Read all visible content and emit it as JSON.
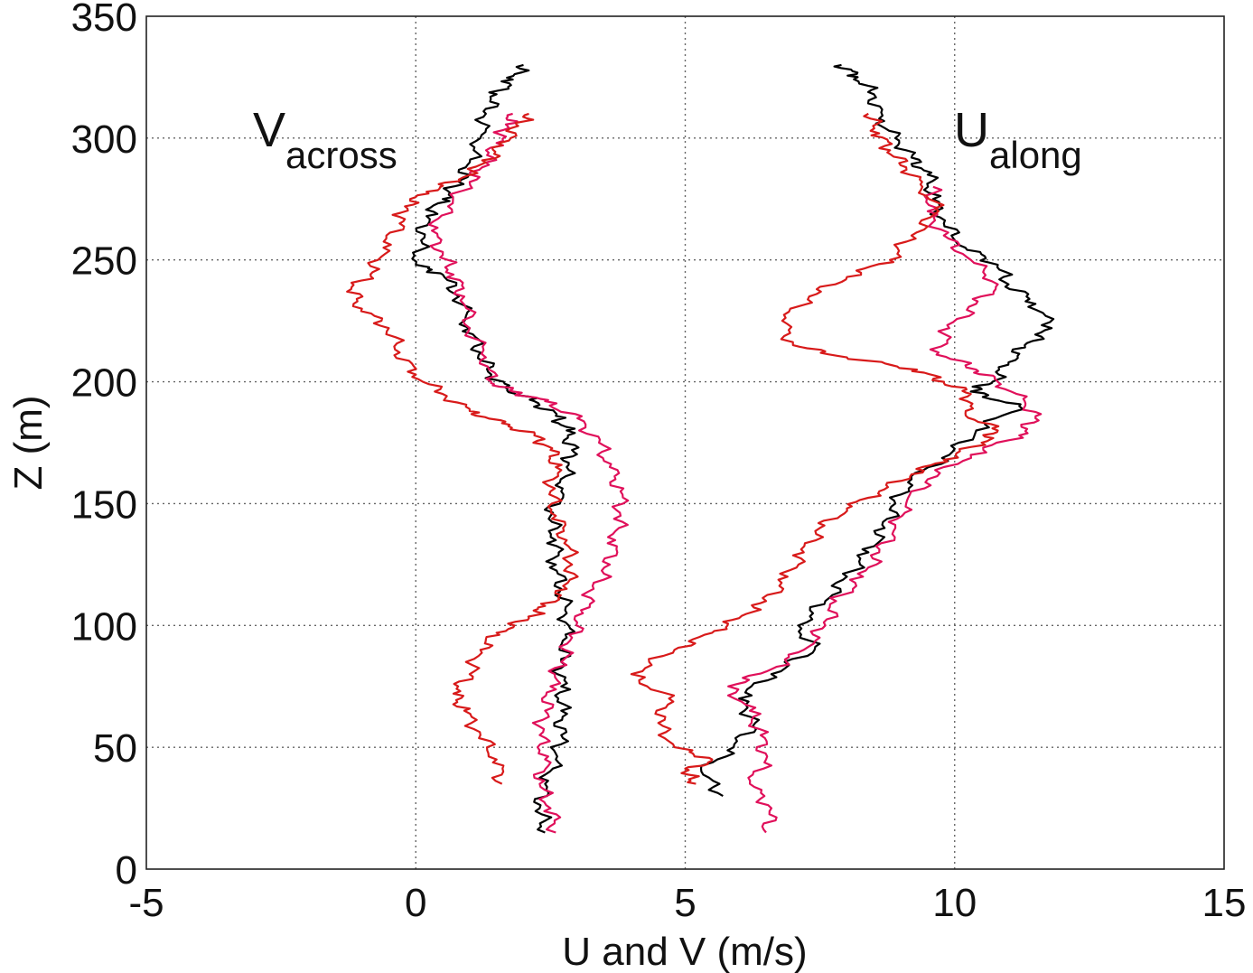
{
  "chart_data": {
    "type": "line",
    "title": "",
    "xlabel": "U and V (m/s)",
    "ylabel": "Z (m)",
    "xlim": [
      -5,
      15
    ],
    "ylim": [
      0,
      350
    ],
    "xticks": [
      -5,
      0,
      5,
      10,
      15
    ],
    "yticks": [
      0,
      50,
      100,
      150,
      200,
      250,
      300,
      350
    ],
    "xtick_labels": [
      "-5",
      "0",
      "5",
      "10",
      "15"
    ],
    "ytick_labels": [
      "0",
      "50",
      "100",
      "150",
      "200",
      "250",
      "300",
      "350"
    ],
    "grid": true,
    "legend": "none",
    "annotations": [
      {
        "id": "v-across",
        "main": "V",
        "sub": "across"
      },
      {
        "id": "u-along",
        "main": "U",
        "sub": "along"
      }
    ],
    "series": [
      {
        "group": "V",
        "color": "#000000",
        "points": [
          [
            2.4,
            15
          ],
          [
            2.3,
            25
          ],
          [
            2.4,
            35
          ],
          [
            2.6,
            45
          ],
          [
            2.7,
            55
          ],
          [
            2.7,
            65
          ],
          [
            2.7,
            75
          ],
          [
            2.7,
            85
          ],
          [
            2.8,
            95
          ],
          [
            2.8,
            105
          ],
          [
            2.7,
            115
          ],
          [
            2.6,
            125
          ],
          [
            2.6,
            135
          ],
          [
            2.5,
            145
          ],
          [
            2.7,
            155
          ],
          [
            2.8,
            165
          ],
          [
            2.9,
            172
          ],
          [
            2.8,
            180
          ],
          [
            2.6,
            186
          ],
          [
            2.2,
            192
          ],
          [
            1.7,
            197
          ],
          [
            1.4,
            203
          ],
          [
            1.2,
            212
          ],
          [
            1.0,
            222
          ],
          [
            0.8,
            235
          ],
          [
            0.5,
            244
          ],
          [
            0.0,
            248
          ],
          [
            0.1,
            258
          ],
          [
            0.2,
            268
          ],
          [
            0.5,
            275
          ],
          [
            0.8,
            282
          ],
          [
            1.0,
            290
          ],
          [
            1.2,
            300
          ],
          [
            1.3,
            310
          ],
          [
            1.5,
            318
          ],
          [
            1.8,
            324
          ],
          [
            2.0,
            330
          ]
        ]
      },
      {
        "group": "V",
        "color": "#e0105a",
        "points": [
          [
            2.6,
            15
          ],
          [
            2.5,
            25
          ],
          [
            2.3,
            35
          ],
          [
            2.4,
            45
          ],
          [
            2.3,
            55
          ],
          [
            2.4,
            65
          ],
          [
            2.5,
            75
          ],
          [
            2.7,
            85
          ],
          [
            2.9,
            95
          ],
          [
            3.1,
            105
          ],
          [
            3.3,
            115
          ],
          [
            3.6,
            125
          ],
          [
            3.7,
            135
          ],
          [
            3.8,
            145
          ],
          [
            3.8,
            155
          ],
          [
            3.6,
            165
          ],
          [
            3.4,
            175
          ],
          [
            3.0,
            185
          ],
          [
            2.4,
            192
          ],
          [
            1.8,
            196
          ],
          [
            1.4,
            200
          ],
          [
            1.3,
            210
          ],
          [
            1.0,
            222
          ],
          [
            0.9,
            235
          ],
          [
            0.7,
            244
          ],
          [
            0.5,
            252
          ],
          [
            0.3,
            262
          ],
          [
            0.6,
            272
          ],
          [
            1.0,
            282
          ],
          [
            1.3,
            290
          ],
          [
            1.5,
            298
          ],
          [
            1.7,
            305
          ],
          [
            1.8,
            310
          ]
        ]
      },
      {
        "group": "V",
        "color": "#d81a1a",
        "points": [
          [
            1.6,
            35
          ],
          [
            1.5,
            45
          ],
          [
            1.2,
            55
          ],
          [
            0.9,
            65
          ],
          [
            0.7,
            72
          ],
          [
            1.0,
            80
          ],
          [
            1.2,
            90
          ],
          [
            1.5,
            97
          ],
          [
            2.1,
            103
          ],
          [
            2.4,
            108
          ],
          [
            2.8,
            115
          ],
          [
            2.9,
            125
          ],
          [
            2.8,
            135
          ],
          [
            2.6,
            145
          ],
          [
            2.5,
            155
          ],
          [
            2.6,
            165
          ],
          [
            2.5,
            172
          ],
          [
            2.2,
            178
          ],
          [
            1.6,
            183
          ],
          [
            1.0,
            188
          ],
          [
            0.5,
            195
          ],
          [
            0.0,
            203
          ],
          [
            -0.3,
            212
          ],
          [
            -0.5,
            222
          ],
          [
            -1.0,
            230
          ],
          [
            -1.2,
            238
          ],
          [
            -0.8,
            245
          ],
          [
            -0.6,
            255
          ],
          [
            -0.3,
            265
          ],
          [
            -0.2,
            272
          ],
          [
            0.2,
            278
          ],
          [
            0.8,
            283
          ],
          [
            1.3,
            290
          ],
          [
            1.6,
            297
          ],
          [
            1.9,
            305
          ],
          [
            2.1,
            310
          ]
        ]
      },
      {
        "group": "U",
        "color": "#000000",
        "points": [
          [
            5.7,
            30
          ],
          [
            5.3,
            40
          ],
          [
            5.9,
            50
          ],
          [
            6.3,
            60
          ],
          [
            6.0,
            70
          ],
          [
            6.6,
            80
          ],
          [
            7.4,
            90
          ],
          [
            7.1,
            100
          ],
          [
            7.6,
            110
          ],
          [
            8.0,
            120
          ],
          [
            8.4,
            130
          ],
          [
            8.7,
            140
          ],
          [
            8.9,
            150
          ],
          [
            9.2,
            160
          ],
          [
            9.9,
            170
          ],
          [
            10.4,
            180
          ],
          [
            11.2,
            190
          ],
          [
            10.3,
            196
          ],
          [
            10.7,
            200
          ],
          [
            11.0,
            208
          ],
          [
            11.3,
            215
          ],
          [
            11.8,
            222
          ],
          [
            11.5,
            232
          ],
          [
            11.0,
            240
          ],
          [
            10.8,
            248
          ],
          [
            10.2,
            255
          ],
          [
            9.8,
            265
          ],
          [
            9.6,
            275
          ],
          [
            9.5,
            285
          ],
          [
            9.2,
            292
          ],
          [
            8.9,
            300
          ],
          [
            8.6,
            308
          ],
          [
            8.5,
            318
          ],
          [
            8.2,
            325
          ],
          [
            7.9,
            330
          ]
        ]
      },
      {
        "group": "U",
        "color": "#e0105a",
        "points": [
          [
            6.5,
            15
          ],
          [
            6.6,
            25
          ],
          [
            6.2,
            35
          ],
          [
            6.5,
            45
          ],
          [
            6.4,
            55
          ],
          [
            6.2,
            65
          ],
          [
            5.8,
            75
          ],
          [
            6.6,
            82
          ],
          [
            7.2,
            90
          ],
          [
            7.6,
            100
          ],
          [
            7.8,
            110
          ],
          [
            8.3,
            120
          ],
          [
            8.6,
            130
          ],
          [
            8.9,
            140
          ],
          [
            9.1,
            150
          ],
          [
            9.5,
            160
          ],
          [
            10.3,
            170
          ],
          [
            11.2,
            178
          ],
          [
            11.5,
            185
          ],
          [
            11.3,
            192
          ],
          [
            10.8,
            200
          ],
          [
            10.4,
            205
          ],
          [
            9.7,
            212
          ],
          [
            9.9,
            222
          ],
          [
            10.4,
            232
          ],
          [
            10.8,
            240
          ],
          [
            10.3,
            250
          ],
          [
            9.8,
            260
          ],
          [
            9.5,
            270
          ],
          [
            9.6,
            280
          ]
        ]
      },
      {
        "group": "U",
        "color": "#d81a1a",
        "points": [
          [
            5.2,
            35
          ],
          [
            5.0,
            40
          ],
          [
            5.5,
            45
          ],
          [
            4.8,
            50
          ],
          [
            4.5,
            60
          ],
          [
            4.7,
            70
          ],
          [
            4.0,
            80
          ],
          [
            4.8,
            90
          ],
          [
            5.5,
            97
          ],
          [
            6.0,
            103
          ],
          [
            6.5,
            110
          ],
          [
            6.9,
            120
          ],
          [
            7.2,
            130
          ],
          [
            7.5,
            140
          ],
          [
            8.0,
            148
          ],
          [
            8.6,
            155
          ],
          [
            9.2,
            162
          ],
          [
            9.8,
            168
          ],
          [
            10.5,
            175
          ],
          [
            10.8,
            180
          ],
          [
            10.2,
            187
          ],
          [
            10.3,
            195
          ],
          [
            9.8,
            200
          ],
          [
            9.3,
            205
          ],
          [
            8.0,
            210
          ],
          [
            7.0,
            215
          ],
          [
            6.8,
            225
          ],
          [
            7.3,
            235
          ],
          [
            8.0,
            243
          ],
          [
            8.8,
            250
          ],
          [
            9.2,
            260
          ],
          [
            9.7,
            270
          ],
          [
            9.4,
            280
          ],
          [
            9.1,
            288
          ],
          [
            8.8,
            295
          ],
          [
            8.6,
            302
          ],
          [
            8.4,
            310
          ]
        ]
      }
    ]
  }
}
